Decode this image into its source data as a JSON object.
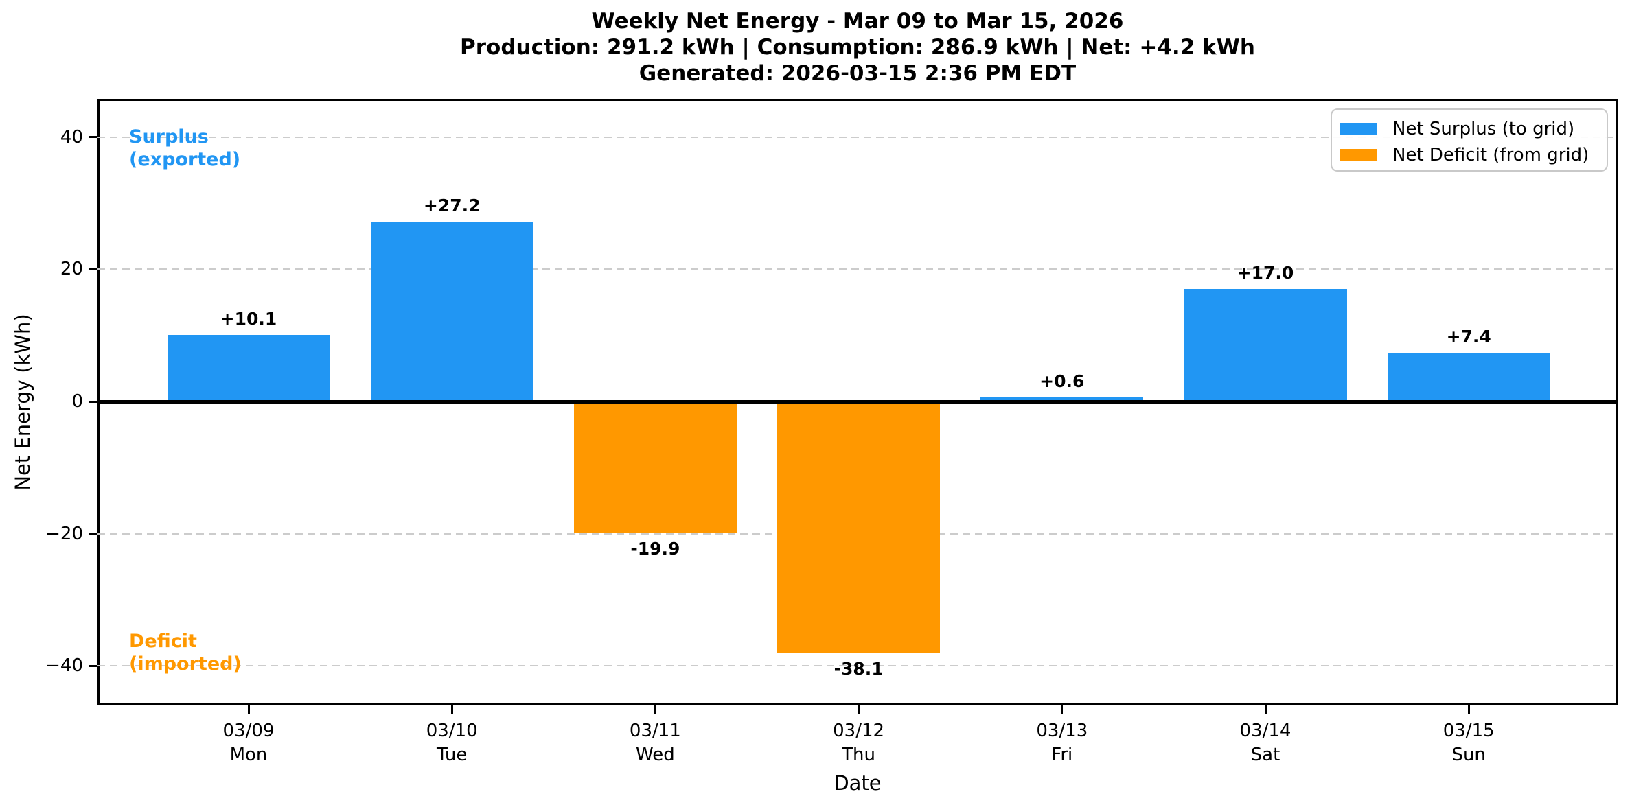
{
  "title": {
    "line1": "Weekly Net Energy - Mar 09 to Mar 15, 2026",
    "line2": "Production: 291.2 kWh | Consumption: 286.9 kWh | Net: +4.2 kWh",
    "line3": "Generated: 2026-03-15 2:36 PM EDT"
  },
  "chart_data": {
    "type": "bar",
    "title": "Weekly Net Energy - Mar 09 to Mar 15, 2026",
    "subtitle": "Production: 291.2 kWh | Consumption: 286.9 kWh | Net: +4.2 kWh",
    "generated_note": "Generated: 2026-03-15 2:36 PM EDT",
    "xlabel": "Date",
    "ylabel": "Net Energy (kWh)",
    "categories": [
      {
        "date": "03/09",
        "day": "Mon"
      },
      {
        "date": "03/10",
        "day": "Tue"
      },
      {
        "date": "03/11",
        "day": "Wed"
      },
      {
        "date": "03/12",
        "day": "Thu"
      },
      {
        "date": "03/13",
        "day": "Fri"
      },
      {
        "date": "03/14",
        "day": "Sat"
      },
      {
        "date": "03/15",
        "day": "Sun"
      }
    ],
    "values": [
      10.1,
      27.2,
      -19.9,
      -38.1,
      0.6,
      17.0,
      7.4
    ],
    "bar_labels": [
      "+10.1",
      "+27.2",
      "-19.9",
      "-38.1",
      "+0.6",
      "+17.0",
      "+7.4"
    ],
    "yticks": [
      {
        "value": 40,
        "label": "40"
      },
      {
        "value": 20,
        "label": "20"
      },
      {
        "value": 0,
        "label": "0"
      },
      {
        "value": -20,
        "label": "−20"
      },
      {
        "value": -40,
        "label": "−40"
      }
    ],
    "ylim": [
      -45.8,
      45.8
    ],
    "grid": "horizontal-dashed",
    "colors": {
      "positive": "#2196F3",
      "negative": "#FF9800",
      "gridline": "#cccccc",
      "axis": "#000000"
    },
    "legend": {
      "position": "upper-right",
      "items": [
        {
          "label": "Net Surplus (to grid)",
          "color": "#2196F3"
        },
        {
          "label": "Net Deficit (from grid)",
          "color": "#FF9800"
        }
      ]
    },
    "annotations": [
      {
        "text": "Surplus\n(exported)",
        "color": "#2196F3",
        "position": "upper-left"
      },
      {
        "text": "Deficit\n(imported)",
        "color": "#FF9800",
        "position": "lower-left"
      }
    ]
  }
}
